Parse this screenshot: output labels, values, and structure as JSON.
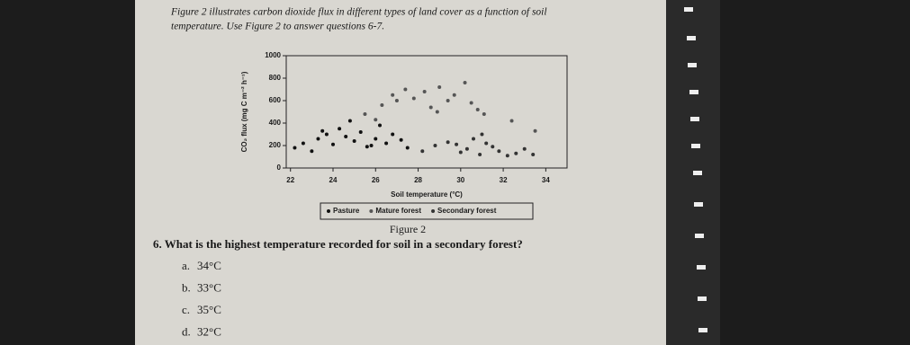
{
  "intro": {
    "line1": "Figure 2 illustrates carbon dioxide flux in different types of land cover as a function of soil",
    "line2": "temperature. Use Figure 2 to answer questions 6-7."
  },
  "figure": {
    "caption": "Figure 2",
    "chart_data": {
      "type": "scatter",
      "x_label": "Soil temperature (°C)",
      "y_label": "CO₂ flux (mg C m⁻² h⁻¹)",
      "xlim": [
        21.8,
        35
      ],
      "xticks": [
        22,
        24,
        26,
        28,
        30,
        32,
        34
      ],
      "ylim": [
        0,
        1000
      ],
      "yticks": [
        0,
        200,
        400,
        600,
        800,
        1000
      ],
      "series": [
        {
          "name": "Pasture",
          "color": "#111111",
          "x": [
            22.2,
            22.6,
            23,
            23.3,
            23.7,
            24,
            24.3,
            24.6,
            25,
            25.3,
            25.6,
            26,
            26.2,
            26.5,
            26.8,
            27.2,
            27.5,
            24.8,
            23.5,
            25.8
          ],
          "values": [
            180,
            220,
            150,
            260,
            300,
            210,
            350,
            280,
            240,
            320,
            190,
            260,
            380,
            220,
            300,
            250,
            180,
            420,
            330,
            200
          ]
        },
        {
          "name": "Mature forest",
          "color": "#555555",
          "x": [
            25.5,
            26.3,
            26.8,
            27.4,
            27.8,
            28.3,
            28.6,
            29,
            29.4,
            29.7,
            30.2,
            30.5,
            31.1,
            32.4,
            33.5,
            26,
            27,
            28.9,
            30.8
          ],
          "values": [
            480,
            560,
            650,
            700,
            620,
            680,
            540,
            720,
            600,
            650,
            760,
            580,
            480,
            420,
            330,
            430,
            600,
            500,
            520
          ]
        },
        {
          "name": "Secondary forest",
          "color": "#333333",
          "x": [
            28.2,
            28.8,
            29.4,
            30,
            30.3,
            30.6,
            30.9,
            31.2,
            31.5,
            31.8,
            32.2,
            32.6,
            33,
            33.4,
            31,
            29.8
          ],
          "values": [
            150,
            200,
            230,
            140,
            170,
            260,
            120,
            220,
            190,
            150,
            110,
            130,
            170,
            120,
            300,
            210
          ]
        }
      ]
    }
  },
  "question": {
    "text": "6. What is the highest temperature recorded for soil in a secondary forest?",
    "options": [
      {
        "label": "a.",
        "text": "34°C"
      },
      {
        "label": "b.",
        "text": "33°C"
      },
      {
        "label": "c.",
        "text": "35°C"
      },
      {
        "label": "d.",
        "text": "32°C"
      }
    ]
  }
}
